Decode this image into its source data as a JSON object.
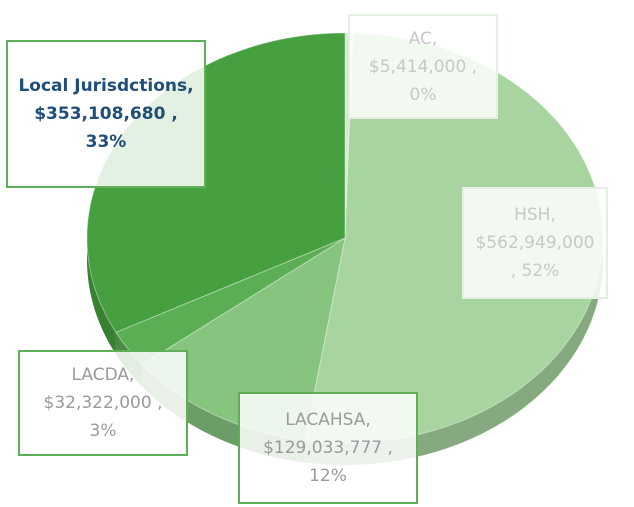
{
  "chart_data": {
    "type": "pie",
    "values": [
      5414000,
      562949000,
      129033777,
      32322000,
      353108680
    ],
    "value_labels": [
      "AC, $5,414,000 , 0%",
      "HSH, $562,949,000 , 52%",
      "LACAHSA, $129,033,777 , 12%",
      "LACDA, $32,322,000 , 3%",
      "Local Jurisdctions, $353,108,680 , 33%"
    ],
    "colors": [
      "#d4ead0",
      "#a8d59f",
      "#86c47f",
      "#5cae55",
      "#46a03f"
    ]
  }
}
